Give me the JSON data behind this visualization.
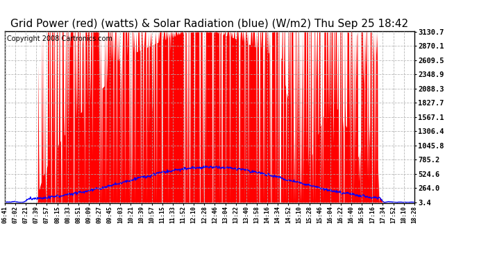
{
  "title": "Grid Power (red) (watts) & Solar Radiation (blue) (W/m2) Thu Sep 25 18:42",
  "copyright": "Copyright 2008 Cartronics.com",
  "yticks": [
    3.4,
    264.0,
    524.6,
    785.2,
    1045.8,
    1306.4,
    1567.1,
    1827.7,
    2088.3,
    2348.9,
    2609.5,
    2870.1,
    3130.7
  ],
  "ymin": 3.4,
  "ymax": 3130.7,
  "bg_color": "#ffffff",
  "plot_bg_color": "#ffffff",
  "grid_color": "#b0b0b0",
  "red_color": "#ff0000",
  "blue_color": "#0000ff",
  "title_fontsize": 11,
  "copyright_fontsize": 7,
  "xtick_fontsize": 6,
  "ytick_fontsize": 7.5,
  "xtick_labels": [
    "06:41",
    "07:02",
    "07:21",
    "07:39",
    "07:57",
    "08:15",
    "08:33",
    "08:51",
    "09:09",
    "09:27",
    "09:45",
    "10:03",
    "10:21",
    "10:39",
    "10:57",
    "11:15",
    "11:33",
    "11:52",
    "12:10",
    "12:28",
    "12:46",
    "13:04",
    "13:22",
    "13:40",
    "13:58",
    "14:16",
    "14:34",
    "14:52",
    "15:10",
    "15:28",
    "15:46",
    "16:04",
    "16:22",
    "16:40",
    "16:58",
    "17:16",
    "17:34",
    "17:52",
    "18:10",
    "18:28"
  ],
  "solar_peak": 650,
  "grid_peak": 3130,
  "n_points": 800
}
